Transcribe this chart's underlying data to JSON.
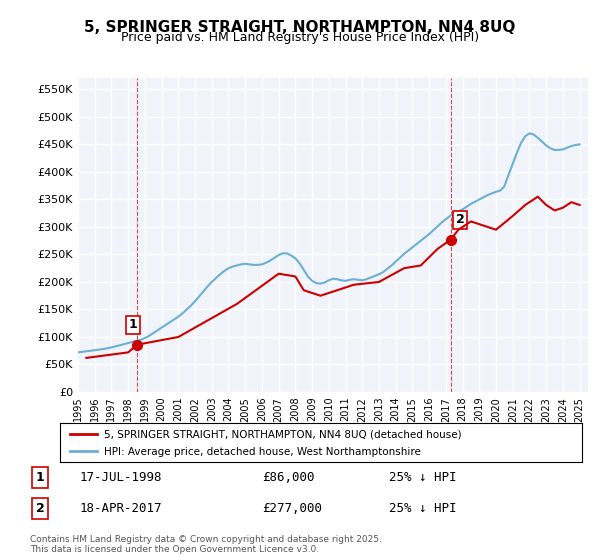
{
  "title": "5, SPRINGER STRAIGHT, NORTHAMPTON, NN4 8UQ",
  "subtitle": "Price paid vs. HM Land Registry's House Price Index (HPI)",
  "ylabel_ticks": [
    "£0",
    "£50K",
    "£100K",
    "£150K",
    "£200K",
    "£250K",
    "£300K",
    "£350K",
    "£400K",
    "£450K",
    "£500K",
    "£550K"
  ],
  "ytick_values": [
    0,
    50000,
    100000,
    150000,
    200000,
    250000,
    300000,
    350000,
    400000,
    450000,
    500000,
    550000
  ],
  "ylim": [
    0,
    570000
  ],
  "xlim_start": 1995.0,
  "xlim_end": 2025.5,
  "hpi_color": "#6baed6",
  "price_color": "#cc0000",
  "vline_color": "#cc0000",
  "background_color": "#f0f4fa",
  "grid_color": "#ffffff",
  "purchase1_x": 1998.54,
  "purchase1_y": 86000,
  "purchase1_label": "1",
  "purchase2_x": 2017.29,
  "purchase2_y": 277000,
  "purchase2_label": "2",
  "legend1": "5, SPRINGER STRAIGHT, NORTHAMPTON, NN4 8UQ (detached house)",
  "legend2": "HPI: Average price, detached house, West Northamptonshire",
  "annotation1_date": "17-JUL-1998",
  "annotation1_price": "£86,000",
  "annotation1_hpi": "25% ↓ HPI",
  "annotation2_date": "18-APR-2017",
  "annotation2_price": "£277,000",
  "annotation2_hpi": "25% ↓ HPI",
  "footer": "Contains HM Land Registry data © Crown copyright and database right 2025.\nThis data is licensed under the Open Government Licence v3.0.",
  "hpi_x": [
    1995.0,
    1995.25,
    1995.5,
    1995.75,
    1996.0,
    1996.25,
    1996.5,
    1996.75,
    1997.0,
    1997.25,
    1997.5,
    1997.75,
    1998.0,
    1998.25,
    1998.5,
    1998.75,
    1999.0,
    1999.25,
    1999.5,
    1999.75,
    2000.0,
    2000.25,
    2000.5,
    2000.75,
    2001.0,
    2001.25,
    2001.5,
    2001.75,
    2002.0,
    2002.25,
    2002.5,
    2002.75,
    2003.0,
    2003.25,
    2003.5,
    2003.75,
    2004.0,
    2004.25,
    2004.5,
    2004.75,
    2005.0,
    2005.25,
    2005.5,
    2005.75,
    2006.0,
    2006.25,
    2006.5,
    2006.75,
    2007.0,
    2007.25,
    2007.5,
    2007.75,
    2008.0,
    2008.25,
    2008.5,
    2008.75,
    2009.0,
    2009.25,
    2009.5,
    2009.75,
    2010.0,
    2010.25,
    2010.5,
    2010.75,
    2011.0,
    2011.25,
    2011.5,
    2011.75,
    2012.0,
    2012.25,
    2012.5,
    2012.75,
    2013.0,
    2013.25,
    2013.5,
    2013.75,
    2014.0,
    2014.25,
    2014.5,
    2014.75,
    2015.0,
    2015.25,
    2015.5,
    2015.75,
    2016.0,
    2016.25,
    2016.5,
    2016.75,
    2017.0,
    2017.25,
    2017.5,
    2017.75,
    2018.0,
    2018.25,
    2018.5,
    2018.75,
    2019.0,
    2019.25,
    2019.5,
    2019.75,
    2020.0,
    2020.25,
    2020.5,
    2020.75,
    2021.0,
    2021.25,
    2021.5,
    2021.75,
    2022.0,
    2022.25,
    2022.5,
    2022.75,
    2023.0,
    2023.25,
    2023.5,
    2023.75,
    2024.0,
    2024.25,
    2024.5,
    2024.75,
    2025.0
  ],
  "hpi_y": [
    72000,
    73000,
    74000,
    75000,
    76000,
    77000,
    78000,
    79500,
    81000,
    83000,
    85000,
    87000,
    89000,
    91000,
    93000,
    95000,
    98000,
    102000,
    107000,
    112000,
    117000,
    122000,
    127000,
    132000,
    137000,
    143000,
    150000,
    157000,
    165000,
    174000,
    183000,
    192000,
    200000,
    207000,
    214000,
    220000,
    225000,
    228000,
    230000,
    232000,
    233000,
    232000,
    231000,
    231000,
    232000,
    235000,
    239000,
    244000,
    249000,
    252000,
    252000,
    248000,
    243000,
    234000,
    222000,
    210000,
    202000,
    198000,
    197000,
    199000,
    203000,
    206000,
    205000,
    203000,
    202000,
    204000,
    205000,
    204000,
    203000,
    205000,
    208000,
    211000,
    214000,
    218000,
    224000,
    230000,
    237000,
    244000,
    251000,
    257000,
    263000,
    269000,
    275000,
    281000,
    287000,
    294000,
    301000,
    308000,
    314000,
    320000,
    325000,
    328000,
    332000,
    337000,
    342000,
    346000,
    350000,
    354000,
    358000,
    361000,
    364000,
    366000,
    374000,
    395000,
    415000,
    435000,
    453000,
    465000,
    470000,
    468000,
    462000,
    455000,
    448000,
    443000,
    440000,
    440000,
    441000,
    444000,
    447000,
    449000,
    450000
  ],
  "price_x": [
    1995.5,
    1998.0,
    1998.54,
    2001.0,
    2004.5,
    2007.0,
    2008.0,
    2008.5,
    2009.5,
    2010.5,
    2011.5,
    2013.0,
    2014.5,
    2015.5,
    2016.5,
    2017.29,
    2017.75,
    2018.5,
    2019.0,
    2020.0,
    2021.0,
    2021.75,
    2022.5,
    2023.0,
    2023.5,
    2024.0,
    2024.5,
    2025.0
  ],
  "price_y": [
    62000,
    72000,
    86000,
    100000,
    160000,
    215000,
    210000,
    185000,
    175000,
    185000,
    195000,
    200000,
    225000,
    230000,
    260000,
    277000,
    295000,
    310000,
    305000,
    295000,
    320000,
    340000,
    355000,
    340000,
    330000,
    335000,
    345000,
    340000
  ]
}
